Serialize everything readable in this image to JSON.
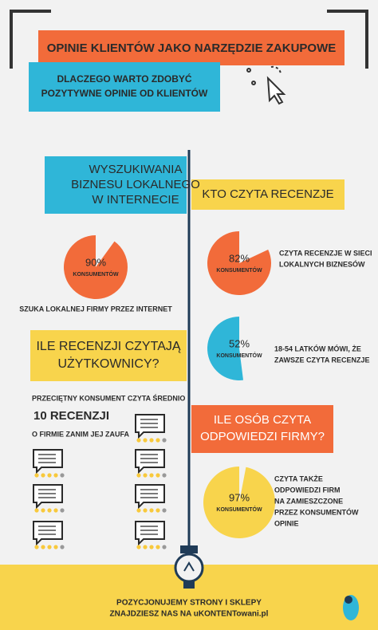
{
  "header": {
    "title": "OPINIE KLIENTÓW JAKO NARZĘDZIE ZAKUPOWE",
    "subtitle": [
      "DLACZEGO WARTO ZDOBYĆ",
      "POZYTYWNE OPINIE OD KLIENTÓW"
    ]
  },
  "boxes": [
    {
      "lines": [
        "WYSZUKIWANIA",
        "BIZNESU LOKALNEGO",
        "W INTERNECIE"
      ]
    },
    {
      "lines": [
        "KTO CZYTA RECENZJE"
      ]
    },
    {
      "lines": [
        "ILE RECENZJI CZYTAJĄ",
        "UŻYTKOWNICY?"
      ]
    },
    {
      "lines": [
        "ILE OSÓB CZYTA",
        "ODPOWIEDZI FIRMY?"
      ]
    }
  ],
  "stats": [
    {
      "value": 90,
      "label": "90%",
      "unit": "KONSUMENTÓW",
      "color": "#f26b3a",
      "caption": [
        "SZUKA LOKALNEJ FIRMY PRZEZ INTERNET"
      ]
    },
    {
      "value": 82,
      "label": "82%",
      "unit": "KONSUMENTÓW",
      "color": "#f26b3a",
      "caption": [
        "CZYTA RECENZJE W SIECI",
        "LOKALNYCH BIZNESÓW"
      ]
    },
    {
      "value": 52,
      "label": "52%",
      "unit": "KONSUMENTÓW",
      "color": "#2fb6d8",
      "caption": [
        "18-54 LATKÓW MÓWI, ŻE",
        "ZAWSZE CZYTA RECENZJE"
      ]
    },
    {
      "value": 97,
      "label": "97%",
      "unit": "KONSUMENTÓW",
      "color": "#f8d44c",
      "caption": [
        "CZYTA TAKŻE",
        "ODPOWIEDZI FIRM",
        "NA ZAMIESZCZONE",
        "PRZEZ KONSUMENTÓW",
        "OPINIE"
      ]
    }
  ],
  "reviews": {
    "lines": [
      "PRZECIĘTNY  KONSUMENT CZYTA ŚREDNIO",
      "10 RECENZJI",
      "O FIRMIE ZANIM JEJ ZAUFA"
    ]
  },
  "footer": {
    "lines": [
      "POZYCJONUJEMY STRONY I SKLEPY",
      "ZNAJDZIESZ NAS NA uKONTENTowani.pl"
    ]
  }
}
